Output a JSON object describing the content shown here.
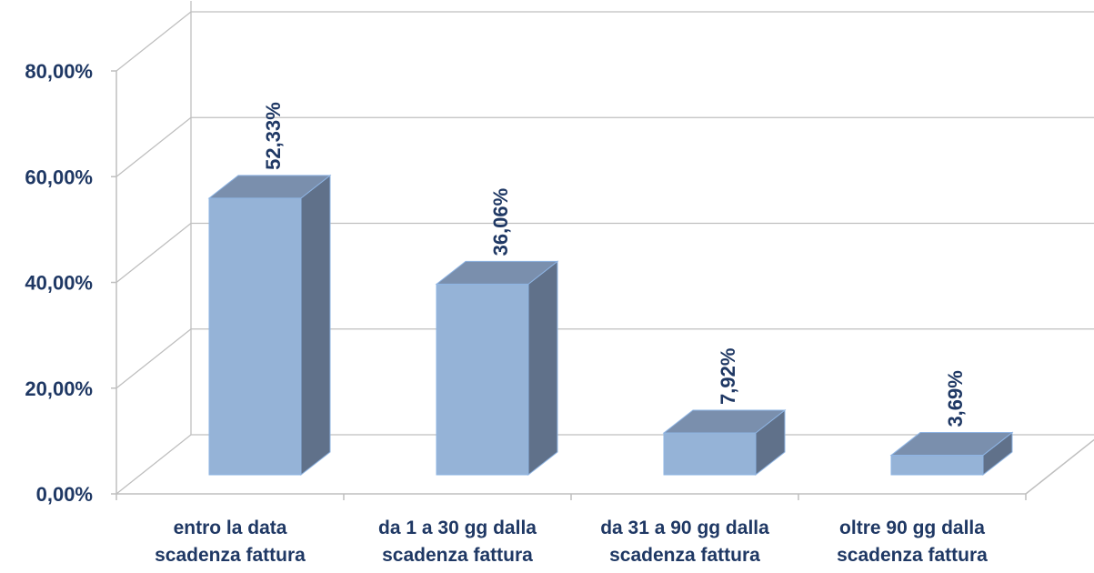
{
  "chart_data": {
    "type": "bar",
    "title": "",
    "xlabel": "",
    "ylabel": "",
    "ylim": [
      0,
      80
    ],
    "y_ticks": [
      0,
      20,
      40,
      60,
      80
    ],
    "y_tick_labels": [
      "0,00%",
      "20,00%",
      "40,00%",
      "60,00%",
      "80,00%"
    ],
    "categories": [
      [
        "entro la data",
        "scadenza fattura"
      ],
      [
        "da 1 a 30 gg dalla",
        "scadenza fattura"
      ],
      [
        "da 31 a 90 gg dalla",
        "scadenza fattura"
      ],
      [
        "oltre 90 gg dalla",
        "scadenza fattura"
      ]
    ],
    "values": [
      52.33,
      36.06,
      7.92,
      3.69
    ],
    "value_labels": [
      "52,33%",
      "36,06%",
      "7,92%",
      "3,69%"
    ],
    "grid": true,
    "legend": "none",
    "colors": {
      "bar_front": "#95b3d7",
      "bar_top": "#7a8fad",
      "bar_side": "#60718a",
      "bar_edge": "#8eb4e3",
      "grid": "#bfbfbf",
      "text": "#1f3864"
    }
  }
}
